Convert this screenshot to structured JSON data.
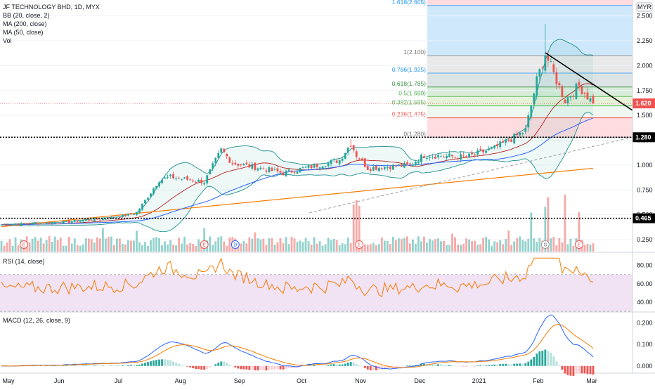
{
  "header": {
    "title": "JF TECHNOLOGY BHD, 1D, MYX",
    "bb_label": "BB (20, close, 2)",
    "ma200_label": "MA (200, close)",
    "ma50_label": "MA (50, close)",
    "vol_label": "Vol",
    "currency": "MYR"
  },
  "colors": {
    "up": "#26a69a",
    "down": "#ef5350",
    "ma50": "#2962ff",
    "ma200": "#f57c00",
    "bb_basis": "#b71c1c",
    "bb_band": "#1f8f8f",
    "rsi": "#f57c00",
    "macd": "#2962ff",
    "signal": "#f57c00",
    "trendline": "#000000"
  },
  "chart_data": [
    {
      "type": "candlestick",
      "title": "JF TECHNOLOGY BHD, 1D, MYX",
      "ylabel": "MYR",
      "ylim": [
        0.13,
        2.66
      ],
      "yticks": [
        "2.500",
        "2.250",
        "2.000",
        "1.750",
        "1.500",
        "1.250",
        "1.000",
        "0.750",
        "0.500",
        "0.250"
      ],
      "xticks": [
        "May",
        "Jun",
        "Jul",
        "Aug",
        "Sep",
        "Oct",
        "Nov",
        "Dec",
        "2021",
        "Feb",
        "Mar"
      ],
      "ohlc_anchors": [
        {
          "t": 0,
          "c": 0.4
        },
        {
          "t": 20,
          "c": 0.42
        },
        {
          "t": 40,
          "c": 0.47
        },
        {
          "t": 48,
          "c": 0.52
        },
        {
          "t": 56,
          "c": 0.85
        },
        {
          "t": 60,
          "c": 0.88
        },
        {
          "t": 72,
          "c": 0.83
        },
        {
          "t": 78,
          "c": 1.15
        },
        {
          "t": 82,
          "c": 1.02
        },
        {
          "t": 90,
          "c": 0.98
        },
        {
          "t": 100,
          "c": 0.92
        },
        {
          "t": 120,
          "c": 1.05
        },
        {
          "t": 124,
          "c": 1.22
        },
        {
          "t": 126,
          "c": 1.1
        },
        {
          "t": 130,
          "c": 0.97
        },
        {
          "t": 145,
          "c": 1.0
        },
        {
          "t": 150,
          "c": 1.1
        },
        {
          "t": 165,
          "c": 1.08
        },
        {
          "t": 175,
          "c": 1.17
        },
        {
          "t": 182,
          "c": 1.28
        },
        {
          "t": 186,
          "c": 1.35
        },
        {
          "t": 190,
          "c": 1.85
        },
        {
          "t": 193,
          "c": 2.12
        },
        {
          "t": 200,
          "c": 1.65
        },
        {
          "t": 205,
          "c": 1.8
        },
        {
          "t": 210,
          "c": 1.62
        }
      ],
      "current_price": "1.620",
      "levels": [
        {
          "label": "1.280",
          "value": 1.28
        },
        {
          "label": "0.465",
          "value": 0.465
        }
      ],
      "fibonacci": [
        {
          "label": "1.618(2.605)",
          "value": 2.605
        },
        {
          "label": "1(2.100)",
          "value": 2.1
        },
        {
          "label": "0.786(1.925)",
          "value": 1.925
        },
        {
          "label": "0.618(1.785)",
          "value": 1.785
        },
        {
          "label": "0.5(1.690)",
          "value": 1.69
        },
        {
          "label": "0.382(1.595)",
          "value": 1.595
        },
        {
          "label": "0.236(1.475)",
          "value": 1.475
        },
        {
          "label": "0(1.280)",
          "value": 1.28
        }
      ],
      "events": [
        {
          "label": "E",
          "t": 8
        },
        {
          "label": "E",
          "t": 72
        },
        {
          "label": "D",
          "t": 83
        },
        {
          "label": "E",
          "t": 127
        },
        {
          "label": "S",
          "t": 193
        },
        {
          "label": "E",
          "t": 205
        }
      ]
    },
    {
      "type": "line",
      "title": "RSI (14, close)",
      "ylim": [
        30,
        92
      ],
      "yticks": [
        "80.00",
        "60.00",
        "40.00"
      ],
      "bands": [
        70,
        30
      ]
    },
    {
      "type": "line",
      "title": "MACD (12, 26, close, 9)",
      "ylim": [
        -0.03,
        0.24
      ],
      "yticks": [
        "0.200",
        "0.100",
        "0.000"
      ]
    }
  ]
}
